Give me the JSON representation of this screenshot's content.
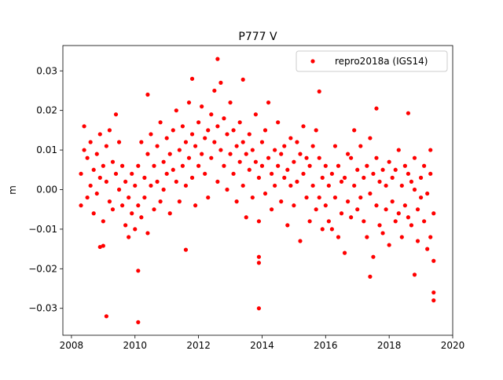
{
  "chart_data": {
    "type": "scatter",
    "title": "P777 V",
    "ylabel": "m",
    "xlim": [
      2007.73,
      2020.0
    ],
    "xticks": [
      2008,
      2010,
      2012,
      2014,
      2016,
      2018,
      2020
    ],
    "ylim": [
      -0.0368,
      0.0364
    ],
    "yticks": [
      {
        "value": -0.03,
        "label": "−0.03"
      },
      {
        "value": -0.02,
        "label": "−0.02"
      },
      {
        "value": -0.01,
        "label": "−0.01"
      },
      {
        "value": 0,
        "label": "0.00"
      },
      {
        "value": 0.01,
        "label": "0.01"
      },
      {
        "value": 0.02,
        "label": "0.02"
      },
      {
        "value": 0.03,
        "label": "0.03"
      }
    ],
    "legend": "upper right",
    "series": [
      {
        "name": "repro2018a (IGS14)",
        "color": "#ff0000",
        "x": [
          2008.3,
          2008.3,
          2008.4,
          2008.4,
          2008.5,
          2008.5,
          2008.6,
          2008.6,
          2008.7,
          2008.7,
          2008.8,
          2008.8,
          2008.9,
          2008.9,
          2009.0,
          2009.0,
          2009.1,
          2009.1,
          2009.2,
          2009.2,
          2009.3,
          2009.3,
          2009.4,
          2009.4,
          2009.5,
          2009.5,
          2009.6,
          2009.6,
          2009.7,
          2009.7,
          2009.8,
          2009.8,
          2009.9,
          2009.9,
          2010.0,
          2010.0,
          2010.1,
          2010.1,
          2010.2,
          2010.2,
          2010.3,
          2010.3,
          2010.4,
          2010.4,
          2010.5,
          2010.5,
          2010.6,
          2010.6,
          2010.7,
          2010.7,
          2010.8,
          2010.8,
          2010.9,
          2010.9,
          2011.0,
          2011.0,
          2011.1,
          2011.1,
          2011.2,
          2011.2,
          2011.3,
          2011.3,
          2011.4,
          2011.4,
          2011.5,
          2011.5,
          2011.6,
          2011.6,
          2011.7,
          2011.7,
          2011.8,
          2011.8,
          2011.9,
          2011.9,
          2012.0,
          2012.0,
          2012.1,
          2012.1,
          2012.2,
          2012.2,
          2012.3,
          2012.3,
          2012.4,
          2012.4,
          2012.5,
          2012.5,
          2012.6,
          2012.6,
          2012.7,
          2012.7,
          2012.8,
          2012.8,
          2012.9,
          2012.9,
          2013.0,
          2013.0,
          2013.1,
          2013.1,
          2013.2,
          2013.2,
          2013.3,
          2013.3,
          2013.4,
          2013.4,
          2013.5,
          2013.5,
          2013.6,
          2013.6,
          2013.7,
          2013.7,
          2013.8,
          2013.8,
          2013.9,
          2013.9,
          2014.0,
          2014.0,
          2014.1,
          2014.1,
          2014.2,
          2014.2,
          2014.3,
          2014.3,
          2014.4,
          2014.4,
          2014.5,
          2014.5,
          2014.6,
          2014.6,
          2014.7,
          2014.7,
          2014.8,
          2014.8,
          2014.9,
          2014.9,
          2015.0,
          2015.0,
          2015.1,
          2015.1,
          2015.2,
          2015.2,
          2015.3,
          2015.3,
          2015.4,
          2015.4,
          2015.5,
          2015.5,
          2015.6,
          2015.6,
          2015.7,
          2015.7,
          2015.8,
          2015.8,
          2015.9,
          2015.9,
          2016.0,
          2016.0,
          2016.1,
          2016.1,
          2016.2,
          2016.2,
          2016.3,
          2016.3,
          2016.4,
          2016.4,
          2016.5,
          2016.5,
          2016.6,
          2016.6,
          2016.7,
          2016.7,
          2016.8,
          2016.8,
          2016.9,
          2016.9,
          2017.0,
          2017.0,
          2017.1,
          2017.1,
          2017.2,
          2017.2,
          2017.3,
          2017.3,
          2017.4,
          2017.4,
          2017.5,
          2017.5,
          2017.6,
          2017.6,
          2017.7,
          2017.7,
          2017.8,
          2017.8,
          2017.9,
          2017.9,
          2018.0,
          2018.0,
          2018.1,
          2018.1,
          2018.2,
          2018.2,
          2018.3,
          2018.3,
          2018.4,
          2018.4,
          2018.5,
          2018.5,
          2018.6,
          2018.6,
          2018.7,
          2018.7,
          2018.8,
          2018.8,
          2018.9,
          2018.9,
          2019.0,
          2019.0,
          2019.1,
          2019.1,
          2019.2,
          2019.2,
          2019.3,
          2019.3,
          2019.4,
          2019.4,
          2009.1,
          2010.1,
          2013.9,
          2010.1,
          2012.6,
          2011.8,
          2013.4,
          2015.8,
          2019.4,
          2019.4,
          2019.3,
          2017.6,
          2018.6,
          2010.4,
          2008.9,
          2009.0,
          2011.6,
          2013.9,
          2013.9,
          2017.4,
          2018.8
        ],
        "values": [
          0.004,
          -0.004,
          0.01,
          0.016,
          -0.002,
          0.008,
          0.012,
          0.001,
          -0.006,
          0.005,
          0.009,
          -0.001,
          0.003,
          0.014,
          -0.008,
          0.006,
          0.002,
          0.011,
          -0.003,
          0.015,
          0.007,
          -0.005,
          0.004,
          0.019,
          0.012,
          0.0,
          -0.004,
          0.006,
          -0.009,
          0.002,
          -0.002,
          -0.012,
          0.004,
          -0.006,
          -0.01,
          0.001,
          0.006,
          -0.004,
          -0.007,
          0.012,
          0.003,
          -0.002,
          0.009,
          -0.011,
          0.001,
          0.014,
          0.006,
          -0.005,
          0.011,
          0.002,
          -0.003,
          0.017,
          0.007,
          0.0,
          0.013,
          0.004,
          -0.006,
          0.009,
          0.015,
          0.005,
          0.002,
          0.02,
          0.01,
          -0.003,
          0.006,
          0.016,
          0.012,
          0.001,
          0.008,
          0.022,
          0.003,
          0.014,
          0.011,
          -0.004,
          0.017,
          0.006,
          0.009,
          0.021,
          0.004,
          0.013,
          0.015,
          -0.002,
          0.008,
          0.019,
          0.012,
          0.025,
          0.002,
          0.016,
          0.01,
          0.027,
          0.006,
          0.018,
          0.014,
          0.0,
          0.009,
          0.022,
          0.004,
          0.015,
          0.011,
          -0.003,
          0.007,
          0.017,
          0.001,
          0.012,
          0.009,
          -0.007,
          0.005,
          0.014,
          -0.002,
          0.01,
          0.007,
          0.019,
          0.003,
          -0.008,
          0.012,
          0.006,
          -0.001,
          0.015,
          0.008,
          0.022,
          0.004,
          -0.005,
          0.01,
          0.001,
          0.006,
          0.017,
          -0.003,
          0.009,
          0.011,
          0.003,
          0.005,
          -0.009,
          0.013,
          0.001,
          0.007,
          -0.004,
          0.002,
          0.012,
          0.009,
          -0.013,
          0.004,
          0.016,
          -0.002,
          0.008,
          0.006,
          -0.008,
          0.001,
          0.011,
          -0.005,
          0.015,
          0.008,
          -0.002,
          0.003,
          -0.01,
          -0.004,
          0.006,
          0.001,
          -0.008,
          -0.01,
          0.004,
          -0.002,
          0.011,
          0.006,
          -0.012,
          -0.006,
          0.002,
          0.003,
          -0.016,
          -0.003,
          0.009,
          0.008,
          -0.007,
          0.001,
          0.015,
          -0.005,
          0.005,
          0.011,
          -0.002,
          -0.008,
          0.003,
          0.006,
          -0.012,
          -0.001,
          0.013,
          0.004,
          -0.017,
          -0.004,
          0.008,
          0.002,
          -0.009,
          -0.011,
          0.005,
          0.001,
          -0.005,
          0.007,
          -0.014,
          -0.003,
          0.003,
          0.005,
          -0.008,
          -0.006,
          0.01,
          0.001,
          -0.012,
          -0.004,
          0.006,
          0.004,
          -0.007,
          -0.009,
          0.002,
          0.0,
          0.008,
          -0.005,
          -0.013,
          0.003,
          -0.002,
          -0.008,
          0.006,
          -0.001,
          -0.015,
          -0.012,
          0.004,
          -0.006,
          -0.018,
          -0.032,
          -0.0335,
          -0.03,
          -0.0205,
          0.033,
          0.028,
          0.0278,
          0.0248,
          -0.026,
          -0.028,
          0.01,
          0.0205,
          0.0193,
          0.024,
          -0.0145,
          -0.0142,
          -0.0152,
          -0.017,
          -0.0185,
          -0.022,
          -0.0215
        ]
      }
    ]
  }
}
